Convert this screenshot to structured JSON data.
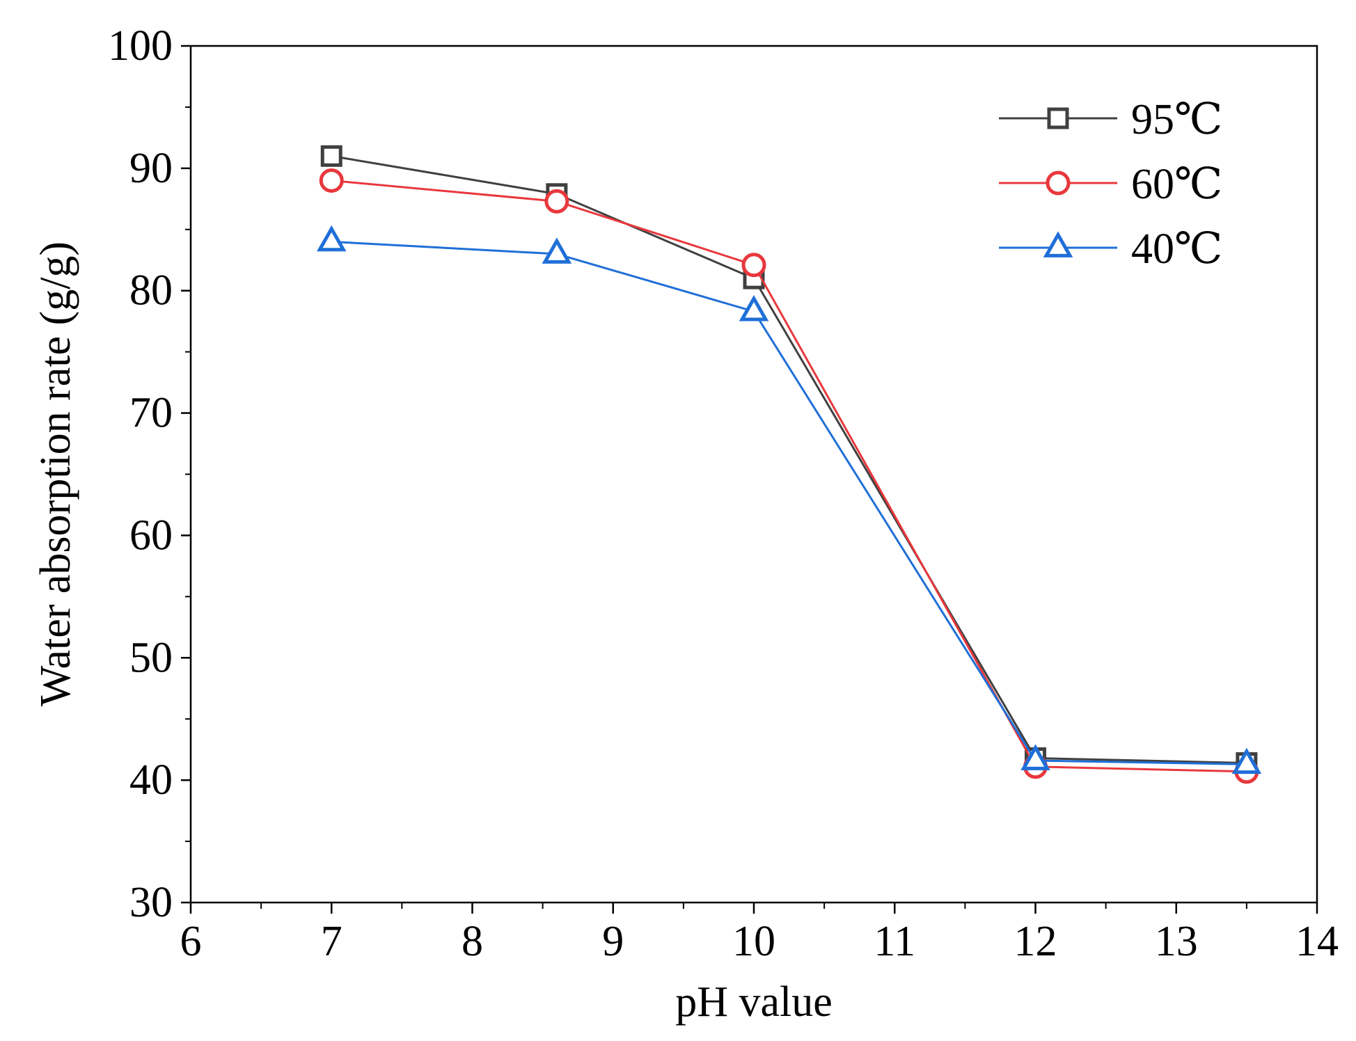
{
  "chart_data": {
    "type": "line",
    "title": "",
    "xlabel": "pH value",
    "ylabel": "Water absorption rate (g/g)",
    "xlim": [
      6,
      14
    ],
    "ylim": [
      30,
      100
    ],
    "xticks": [
      6,
      7,
      8,
      9,
      10,
      11,
      12,
      13,
      14
    ],
    "yticks": [
      30,
      40,
      50,
      60,
      70,
      80,
      90,
      100
    ],
    "x": [
      7,
      8.6,
      10,
      12,
      13.5
    ],
    "legend_position": "top-right",
    "grid": false,
    "series": [
      {
        "name": "95℃",
        "marker": "square",
        "color": "#404040",
        "values": [
          91.0,
          87.9,
          81.0,
          41.8,
          41.4
        ]
      },
      {
        "name": "60℃",
        "marker": "circle",
        "color": "#e8383d",
        "values": [
          89.0,
          87.3,
          82.1,
          41.1,
          40.7
        ]
      },
      {
        "name": "40℃",
        "marker": "triangle",
        "color": "#1f6fd8",
        "values": [
          84.0,
          83.0,
          78.3,
          41.6,
          41.3
        ]
      }
    ]
  }
}
